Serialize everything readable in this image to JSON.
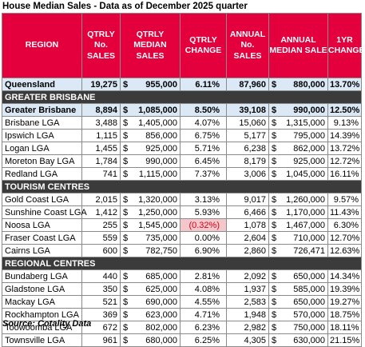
{
  "title": "House Median Sales - Data as of December 2025 quarter",
  "headers": {
    "region": "REGION",
    "qtrly_no_sales": "QTRLY No. SALES",
    "qtrly_median_sales": "QTRLY MEDIAN SALES",
    "qtrly_change": "QTRLY CHANGE",
    "annual_no_sales": "ANNUAL No. SALES",
    "annual_median_sale": "ANNUAL MEDIAN SALE",
    "yr_change": "1YR CHANGE"
  },
  "currency_symbol": "$",
  "colors": {
    "header_bg": "#e3003d",
    "highlight_row_bg": "#dbe9f7",
    "section_bg": "#3b3b3b",
    "negative_bg": "#f4c7cb",
    "negative_text": "#d0021b"
  },
  "rows": [
    {
      "type": "highlight",
      "region": "Queensland",
      "qtrly_sales": "19,275",
      "qtrly_median": "955,000",
      "qtrly_change": "6.11%",
      "annual_sales": "87,960",
      "annual_median": "880,000",
      "yr_change": "13.70%"
    },
    {
      "type": "section",
      "label": "GREATER BRISBANE"
    },
    {
      "type": "highlight",
      "region": "Greater Brisbane",
      "qtrly_sales": "8,894",
      "qtrly_median": "1,085,000",
      "qtrly_change": "8.50%",
      "annual_sales": "39,108",
      "annual_median": "990,000",
      "yr_change": "12.50%"
    },
    {
      "type": "data",
      "region": "Brisbane LGA",
      "qtrly_sales": "3,488",
      "qtrly_median": "1,405,000",
      "qtrly_change": "4.07%",
      "annual_sales": "15,060",
      "annual_median": "1,315,000",
      "yr_change": "9.13%"
    },
    {
      "type": "data",
      "region": "Ipswich LGA",
      "qtrly_sales": "1,115",
      "qtrly_median": "856,000",
      "qtrly_change": "6.75%",
      "annual_sales": "5,177",
      "annual_median": "795,000",
      "yr_change": "14.39%"
    },
    {
      "type": "data",
      "region": "Logan LGA",
      "qtrly_sales": "1,455",
      "qtrly_median": "925,000",
      "qtrly_change": "5.71%",
      "annual_sales": "6,238",
      "annual_median": "862,000",
      "yr_change": "13.72%"
    },
    {
      "type": "data",
      "region": "Moreton Bay LGA",
      "qtrly_sales": "1,784",
      "qtrly_median": "990,000",
      "qtrly_change": "6.45%",
      "annual_sales": "8,179",
      "annual_median": "925,000",
      "yr_change": "12.72%"
    },
    {
      "type": "data",
      "region": "Redland LGA",
      "qtrly_sales": "741",
      "qtrly_median": "1,115,000",
      "qtrly_change": "7.37%",
      "annual_sales": "3,006",
      "annual_median": "1,045,000",
      "yr_change": "16.11%"
    },
    {
      "type": "section",
      "label": "TOURISM CENTRES"
    },
    {
      "type": "data",
      "region": "Gold Coast LGA",
      "qtrly_sales": "2,015",
      "qtrly_median": "1,320,000",
      "qtrly_change": "3.13%",
      "annual_sales": "9,017",
      "annual_median": "1,260,000",
      "yr_change": "9.57%"
    },
    {
      "type": "data",
      "region": "Sunshine Coast LGA",
      "qtrly_sales": "1,412",
      "qtrly_median": "1,250,000",
      "qtrly_change": "5.93%",
      "annual_sales": "6,466",
      "annual_median": "1,170,000",
      "yr_change": "11.43%"
    },
    {
      "type": "data",
      "region": "Noosa LGA",
      "qtrly_sales": "255",
      "qtrly_median": "1,545,000",
      "qtrly_change": "(0.32%)",
      "negative": true,
      "annual_sales": "1,078",
      "annual_median": "1,467,000",
      "yr_change": "6.30%"
    },
    {
      "type": "data",
      "region": "Fraser Coast LGA",
      "qtrly_sales": "559",
      "qtrly_median": "735,000",
      "qtrly_change": "0.00%",
      "annual_sales": "2,604",
      "annual_median": "710,000",
      "yr_change": "12.70%"
    },
    {
      "type": "data",
      "region": "Cairns LGA",
      "qtrly_sales": "600",
      "qtrly_median": "782,750",
      "qtrly_change": "6.90%",
      "annual_sales": "2,860",
      "annual_median": "726,471",
      "yr_change": "12.63%"
    },
    {
      "type": "section",
      "label": "REGIONAL CENTRES"
    },
    {
      "type": "data",
      "region": "Bundaberg LGA",
      "qtrly_sales": "440",
      "qtrly_median": "685,000",
      "qtrly_change": "2.81%",
      "annual_sales": "2,092",
      "annual_median": "650,000",
      "yr_change": "14.34%"
    },
    {
      "type": "data",
      "region": "Gladstone LGA",
      "qtrly_sales": "350",
      "qtrly_median": "625,000",
      "qtrly_change": "4.08%",
      "annual_sales": "1,937",
      "annual_median": "585,000",
      "yr_change": "19.39%"
    },
    {
      "type": "data",
      "region": "Mackay LGA",
      "qtrly_sales": "521",
      "qtrly_median": "690,000",
      "qtrly_change": "4.55%",
      "annual_sales": "2,583",
      "annual_median": "650,000",
      "yr_change": "19.27%"
    },
    {
      "type": "data",
      "region": "Rockhampton LGA",
      "qtrly_sales": "369",
      "qtrly_median": "623,000",
      "qtrly_change": "4.71%",
      "annual_sales": "1,948",
      "annual_median": "570,000",
      "yr_change": "18.75%"
    },
    {
      "type": "data",
      "region": "Toowoomba LGA",
      "qtrly_sales": "672",
      "qtrly_median": "802,000",
      "qtrly_change": "6.23%",
      "annual_sales": "2,982",
      "annual_median": "750,000",
      "yr_change": "18.11%"
    },
    {
      "type": "data",
      "region": "Townsville LGA",
      "qtrly_sales": "961",
      "qtrly_median": "680,000",
      "qtrly_change": "6.25%",
      "annual_sales": "4,305",
      "annual_median": "630,000",
      "yr_change": "21.15%"
    }
  ],
  "source": "Source: Cotality Data"
}
